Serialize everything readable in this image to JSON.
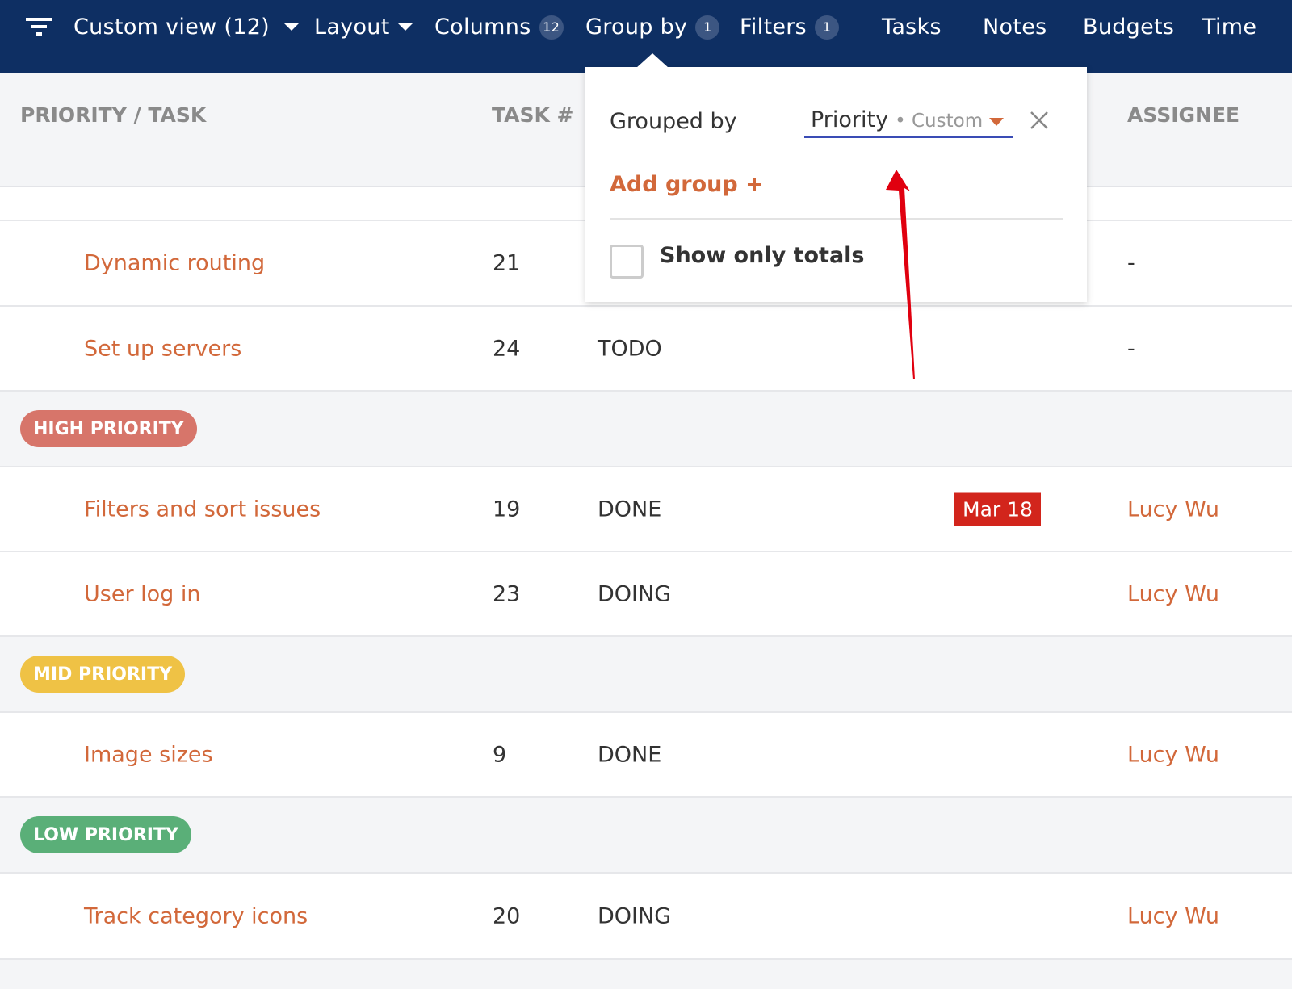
{
  "toolbar": {
    "view_label": "Custom view (12)",
    "layout_label": "Layout",
    "columns_label": "Columns",
    "columns_count": "12",
    "groupby_label": "Group by",
    "groupby_count": "1",
    "filters_label": "Filters",
    "filters_count": "1",
    "tabs": [
      "Tasks",
      "Notes",
      "Budgets",
      "Time"
    ]
  },
  "table": {
    "headers": {
      "task": "PRIORITY / TASK",
      "num": "TASK #",
      "assignee": "ASSIGNEE"
    }
  },
  "rows": [
    {
      "task": "Dynamic routing",
      "num": "21",
      "status": "",
      "date": "",
      "assignee": "-"
    },
    {
      "task": "Set up servers",
      "num": "24",
      "status": "TODO",
      "date": "",
      "assignee": "-"
    },
    {
      "group": "HIGH PRIORITY",
      "color": "#d7756a"
    },
    {
      "task": "Filters and sort issues",
      "num": "19",
      "status": "DONE",
      "date": "Mar 18",
      "assignee": "Lucy Wu"
    },
    {
      "task": "User log in",
      "num": "23",
      "status": "DOING",
      "date": "",
      "assignee": "Lucy Wu"
    },
    {
      "group": "MID PRIORITY",
      "color": "#efc245"
    },
    {
      "task": "Image sizes",
      "num": "9",
      "status": "DONE",
      "date": "",
      "assignee": "Lucy Wu"
    },
    {
      "group": "LOW PRIORITY",
      "color": "#5aaf78"
    },
    {
      "task": "Track category icons",
      "num": "20",
      "status": "DOING",
      "date": "",
      "assignee": "Lucy Wu"
    }
  ],
  "popover": {
    "grouped_by_label": "Grouped by",
    "field_value": "Priority",
    "field_sub": "• Custom",
    "add_group": "Add group +",
    "show_totals": "Show only totals",
    "show_totals_checked": false
  },
  "colors": {
    "nav": "#0e2f63",
    "accent": "#d2683a",
    "underline": "#3a4cb5",
    "annotation_arrow": "#e0000f"
  }
}
